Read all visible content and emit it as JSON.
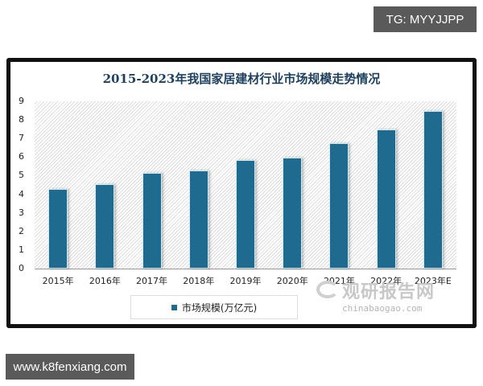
{
  "overlay": {
    "top_tag": "TG: MYYJJPP",
    "bottom_tag": "www.k8fenxiang.com"
  },
  "watermark": {
    "cn": "观研报告网",
    "en": "chinabaogao.com"
  },
  "chart_data": {
    "type": "bar",
    "title": "2015-2023年我国家居建材行业市场规模走势情况",
    "xlabel": "",
    "ylabel": "",
    "categories": [
      "2015年",
      "2016年",
      "2017年",
      "2018年",
      "2019年",
      "2020年",
      "2021年",
      "2022年",
      "2023年E"
    ],
    "series": [
      {
        "name": "市场规模(万亿元)",
        "values": [
          4.3,
          4.55,
          5.15,
          5.3,
          5.85,
          5.98,
          6.73,
          7.47,
          8.5
        ],
        "color": "#1e6b8f"
      }
    ],
    "yticks": [
      "0",
      "1",
      "2",
      "3",
      "4",
      "5",
      "6",
      "7",
      "8",
      "9"
    ],
    "ylim": [
      0,
      9
    ],
    "grid": false,
    "legend_position": "bottom"
  }
}
